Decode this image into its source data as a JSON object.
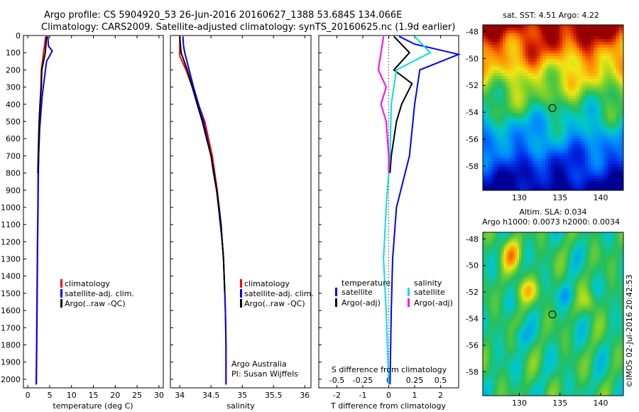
{
  "header": {
    "line1": "Argo profile: CS 5904920_53 26-Jun-2016 20160627_1388 53.684S 134.066E",
    "line2": "Climatology: CARS2009. Satellite-adjusted climatology: synTS_20160625.nc (1.9d earlier)"
  },
  "credit": "©IMOS 02-Jul-2016 20:42:53",
  "chart_data": [
    {
      "type": "line",
      "xlabel": "temperature (deg C)",
      "xlim": [
        -1,
        31
      ],
      "ylim": [
        2050,
        0
      ],
      "xticks": [
        0,
        5,
        10,
        15,
        20,
        25,
        30
      ],
      "yticks": [
        0,
        100,
        200,
        300,
        400,
        500,
        600,
        700,
        800,
        900,
        1000,
        1100,
        1200,
        1300,
        1400,
        1500,
        1600,
        1700,
        1800,
        1900,
        2000
      ],
      "legend": [
        "climatology",
        "satellite-adj. clim.",
        "Argo(..raw -QC)"
      ],
      "series": [
        {
          "name": "climatology",
          "color": "#ff0000",
          "points": [
            [
              4.1,
              5
            ],
            [
              3.6,
              100
            ],
            [
              3.1,
              200
            ],
            [
              3.0,
              300
            ],
            [
              2.8,
              400
            ],
            [
              2.6,
              500
            ],
            [
              2.5,
              600
            ],
            [
              2.4,
              700
            ],
            [
              2.35,
              800
            ],
            [
              2.3,
              1000
            ],
            [
              2.2,
              1200
            ],
            [
              2.1,
              1500
            ],
            [
              2.0,
              1800
            ],
            [
              1.9,
              2030
            ]
          ]
        },
        {
          "name": "satellite-adj. clim.",
          "color": "#0000ff",
          "points": [
            [
              4.6,
              5
            ],
            [
              4.7,
              60
            ],
            [
              5.6,
              90
            ],
            [
              4.3,
              150
            ],
            [
              3.8,
              250
            ],
            [
              3.3,
              350
            ],
            [
              3.0,
              450
            ],
            [
              2.7,
              550
            ],
            [
              2.5,
              700
            ],
            [
              2.4,
              850
            ],
            [
              2.35,
              1000
            ],
            [
              2.25,
              1200
            ],
            [
              2.15,
              1500
            ],
            [
              2.05,
              1800
            ],
            [
              1.95,
              2030
            ]
          ]
        },
        {
          "name": "Argo(..raw -QC)",
          "color": "#000000",
          "points": [
            [
              4.3,
              5
            ],
            [
              4.0,
              100
            ],
            [
              3.2,
              200
            ],
            [
              3.1,
              300
            ],
            [
              2.8,
              400
            ],
            [
              2.6,
              500
            ],
            [
              2.5,
              600
            ],
            [
              2.4,
              700
            ],
            [
              2.3,
              800
            ]
          ]
        }
      ],
      "annotation": []
    },
    {
      "type": "line",
      "xlabel": "salinity",
      "xlim": [
        33.85,
        36.1
      ],
      "ylim": [
        2050,
        0
      ],
      "xticks": [
        34,
        34.5,
        35,
        35.5,
        36
      ],
      "xticklabels": [
        "34",
        "34.5",
        "35",
        "35.5",
        "36"
      ],
      "legend": [
        "climatology",
        "satellite-adj. clim.",
        "Argo(..raw -QC)"
      ],
      "series": [
        {
          "name": "climatology",
          "color": "#ff0000",
          "points": [
            [
              34.0,
              5
            ],
            [
              34.0,
              120
            ],
            [
              34.1,
              200
            ],
            [
              34.2,
              300
            ],
            [
              34.3,
              400
            ],
            [
              34.4,
              500
            ],
            [
              34.46,
              600
            ],
            [
              34.52,
              700
            ],
            [
              34.56,
              800
            ],
            [
              34.6,
              900
            ],
            [
              34.63,
              1000
            ],
            [
              34.66,
              1100
            ],
            [
              34.68,
              1200
            ],
            [
              34.7,
              1300
            ],
            [
              34.71,
              1400
            ],
            [
              34.72,
              1500
            ],
            [
              34.73,
              1600
            ],
            [
              34.735,
              1700
            ],
            [
              34.74,
              1800
            ],
            [
              34.74,
              1900
            ],
            [
              34.74,
              2030
            ]
          ]
        },
        {
          "name": "satellite-adj. clim.",
          "color": "#0000ff",
          "points": [
            [
              34.05,
              5
            ],
            [
              34.06,
              60
            ],
            [
              34.08,
              100
            ],
            [
              34.15,
              200
            ],
            [
              34.22,
              300
            ],
            [
              34.3,
              400
            ],
            [
              34.38,
              500
            ],
            [
              34.44,
              600
            ],
            [
              34.5,
              700
            ],
            [
              34.54,
              800
            ],
            [
              34.59,
              900
            ],
            [
              34.62,
              1000
            ],
            [
              34.65,
              1100
            ],
            [
              34.68,
              1200
            ],
            [
              34.7,
              1300
            ],
            [
              34.71,
              1400
            ],
            [
              34.72,
              1500
            ],
            [
              34.73,
              1600
            ],
            [
              34.735,
              1700
            ],
            [
              34.74,
              1800
            ],
            [
              34.74,
              1900
            ],
            [
              34.74,
              2030
            ]
          ]
        },
        {
          "name": "Argo(..raw -QC)",
          "color": "#000000",
          "points": [
            [
              34.0,
              5
            ],
            [
              34.02,
              100
            ],
            [
              34.12,
              200
            ],
            [
              34.2,
              300
            ],
            [
              34.28,
              400
            ],
            [
              34.36,
              500
            ],
            [
              34.43,
              600
            ],
            [
              34.5,
              700
            ],
            [
              34.55,
              800
            ],
            [
              34.59,
              900
            ],
            [
              34.63,
              1000
            ],
            [
              34.66,
              1100
            ],
            [
              34.68,
              1200
            ],
            [
              34.7,
              1300
            ],
            [
              34.71,
              1400
            ],
            [
              34.72,
              1500
            ]
          ]
        }
      ],
      "annotation": [
        "Argo Australia",
        "PI: Susan Wijffels"
      ]
    },
    {
      "type": "line",
      "xlabel": "T difference from climatology",
      "xlabel_top": "S difference from climatology",
      "xlim": [
        -2.7,
        2.7
      ],
      "ylim": [
        2050,
        0
      ],
      "xticks": [
        -2,
        -1,
        0,
        1,
        2
      ],
      "xticks_top": [
        -0.5,
        -0.25,
        0,
        0.25,
        0.5
      ],
      "xticks_top_labels": [
        "-0.5",
        "-0.25",
        "0",
        "0.25",
        "0.5"
      ],
      "legend_headers": [
        "temperature",
        "salinity"
      ],
      "legend_left": [
        "satellite",
        "Argo(-adj)"
      ],
      "legend_right": [
        "satellite",
        "Argo(-adj)"
      ],
      "series": [
        {
          "name": "T satellite",
          "color": "#0000ff",
          "points": [
            [
              0.4,
              5
            ],
            [
              1.0,
              50
            ],
            [
              2.7,
              110
            ],
            [
              1.2,
              200
            ],
            [
              1.0,
              400
            ],
            [
              0.8,
              700
            ],
            [
              0.3,
              1000
            ],
            [
              0.15,
              1300
            ],
            [
              0.1,
              1600
            ],
            [
              0.05,
              2030
            ]
          ]
        },
        {
          "name": "T Argo(-adj)",
          "color": "#000000",
          "points": [
            [
              0.2,
              5
            ],
            [
              0.8,
              100
            ],
            [
              0.2,
              200
            ],
            [
              0.9,
              280
            ],
            [
              0.5,
              400
            ],
            [
              0.3,
              500
            ],
            [
              0.2,
              600
            ],
            [
              0.1,
              700
            ],
            [
              0.05,
              800
            ]
          ]
        },
        {
          "name": "S satellite",
          "color": "#00e0e0",
          "points": [
            [
              1.0,
              5
            ],
            [
              1.6,
              100
            ],
            [
              0.3,
              200
            ],
            [
              0.1,
              400
            ],
            [
              0.05,
              700
            ],
            [
              -0.1,
              1000
            ],
            [
              -0.2,
              1300
            ],
            [
              -0.1,
              1600
            ],
            [
              0.0,
              2030
            ]
          ]
        },
        {
          "name": "S Argo(-adj)",
          "color": "#ff00ff",
          "points": [
            [
              -0.2,
              5
            ],
            [
              -0.3,
              100
            ],
            [
              -0.4,
              200
            ],
            [
              -0.1,
              300
            ],
            [
              -0.3,
              400
            ],
            [
              -0.1,
              500
            ],
            [
              0.0,
              700
            ],
            [
              0.0,
              800
            ]
          ]
        }
      ],
      "annotation": []
    }
  ],
  "maps": {
    "sst": {
      "title": "sat. SST: 4.51  Argo: 4.22",
      "xlim": [
        125.5,
        142.8
      ],
      "ylim": [
        -59.8,
        -47.5
      ],
      "xticks": [
        130,
        135,
        140
      ],
      "yticks": [
        -48,
        -50,
        -52,
        -54,
        -56,
        -58
      ],
      "marker": [
        134.066,
        -53.684
      ]
    },
    "sla": {
      "title1": "Altim. SLA: 0.034",
      "title2": "Argo h1000: 0.0073  h2000: 0.0034",
      "xlim": [
        125.5,
        142.8
      ],
      "ylim": [
        -59.8,
        -47.5
      ],
      "xticks": [
        130,
        135,
        140
      ],
      "yticks": [
        -48,
        -50,
        -52,
        -54,
        -56,
        -58
      ],
      "marker": [
        134.066,
        -53.684
      ]
    }
  }
}
